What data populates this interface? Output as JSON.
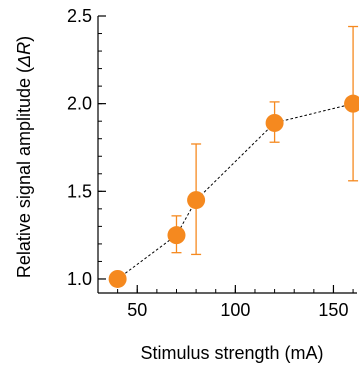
{
  "chart_data": {
    "type": "scatter",
    "xlabel": "Stimulus strength (mA)",
    "ylabel": {
      "before": "Relative signal amplitude (",
      "italic": "ΔR",
      "after": ")"
    },
    "xlim": [
      30,
      162
    ],
    "ylim": [
      0.92,
      2.5
    ],
    "x_ticks": [
      50,
      100,
      150
    ],
    "y_ticks": [
      1.0,
      1.5,
      2.0,
      2.5
    ],
    "x_tick_labels": [
      "50",
      "100",
      "150"
    ],
    "y_tick_labels": [
      "1.0",
      "1.5",
      "2.0",
      "2.5"
    ],
    "x_minor_step": 10,
    "y_minor_step": 0.1,
    "grid": false,
    "marker_color": "#f5891f",
    "trend_line_style": "dashed",
    "series": [
      {
        "points": [
          {
            "x": 40,
            "y": 1.0,
            "err_lo": 0.0,
            "err_hi": 0.0
          },
          {
            "x": 70,
            "y": 1.25,
            "err_lo": 0.1,
            "err_hi": 0.11
          },
          {
            "x": 80,
            "y": 1.45,
            "err_lo": 0.31,
            "err_hi": 0.32
          },
          {
            "x": 120,
            "y": 1.89,
            "err_lo": 0.11,
            "err_hi": 0.12
          },
          {
            "x": 160,
            "y": 2.0,
            "err_lo": 0.44,
            "err_hi": 0.44
          }
        ]
      }
    ]
  }
}
